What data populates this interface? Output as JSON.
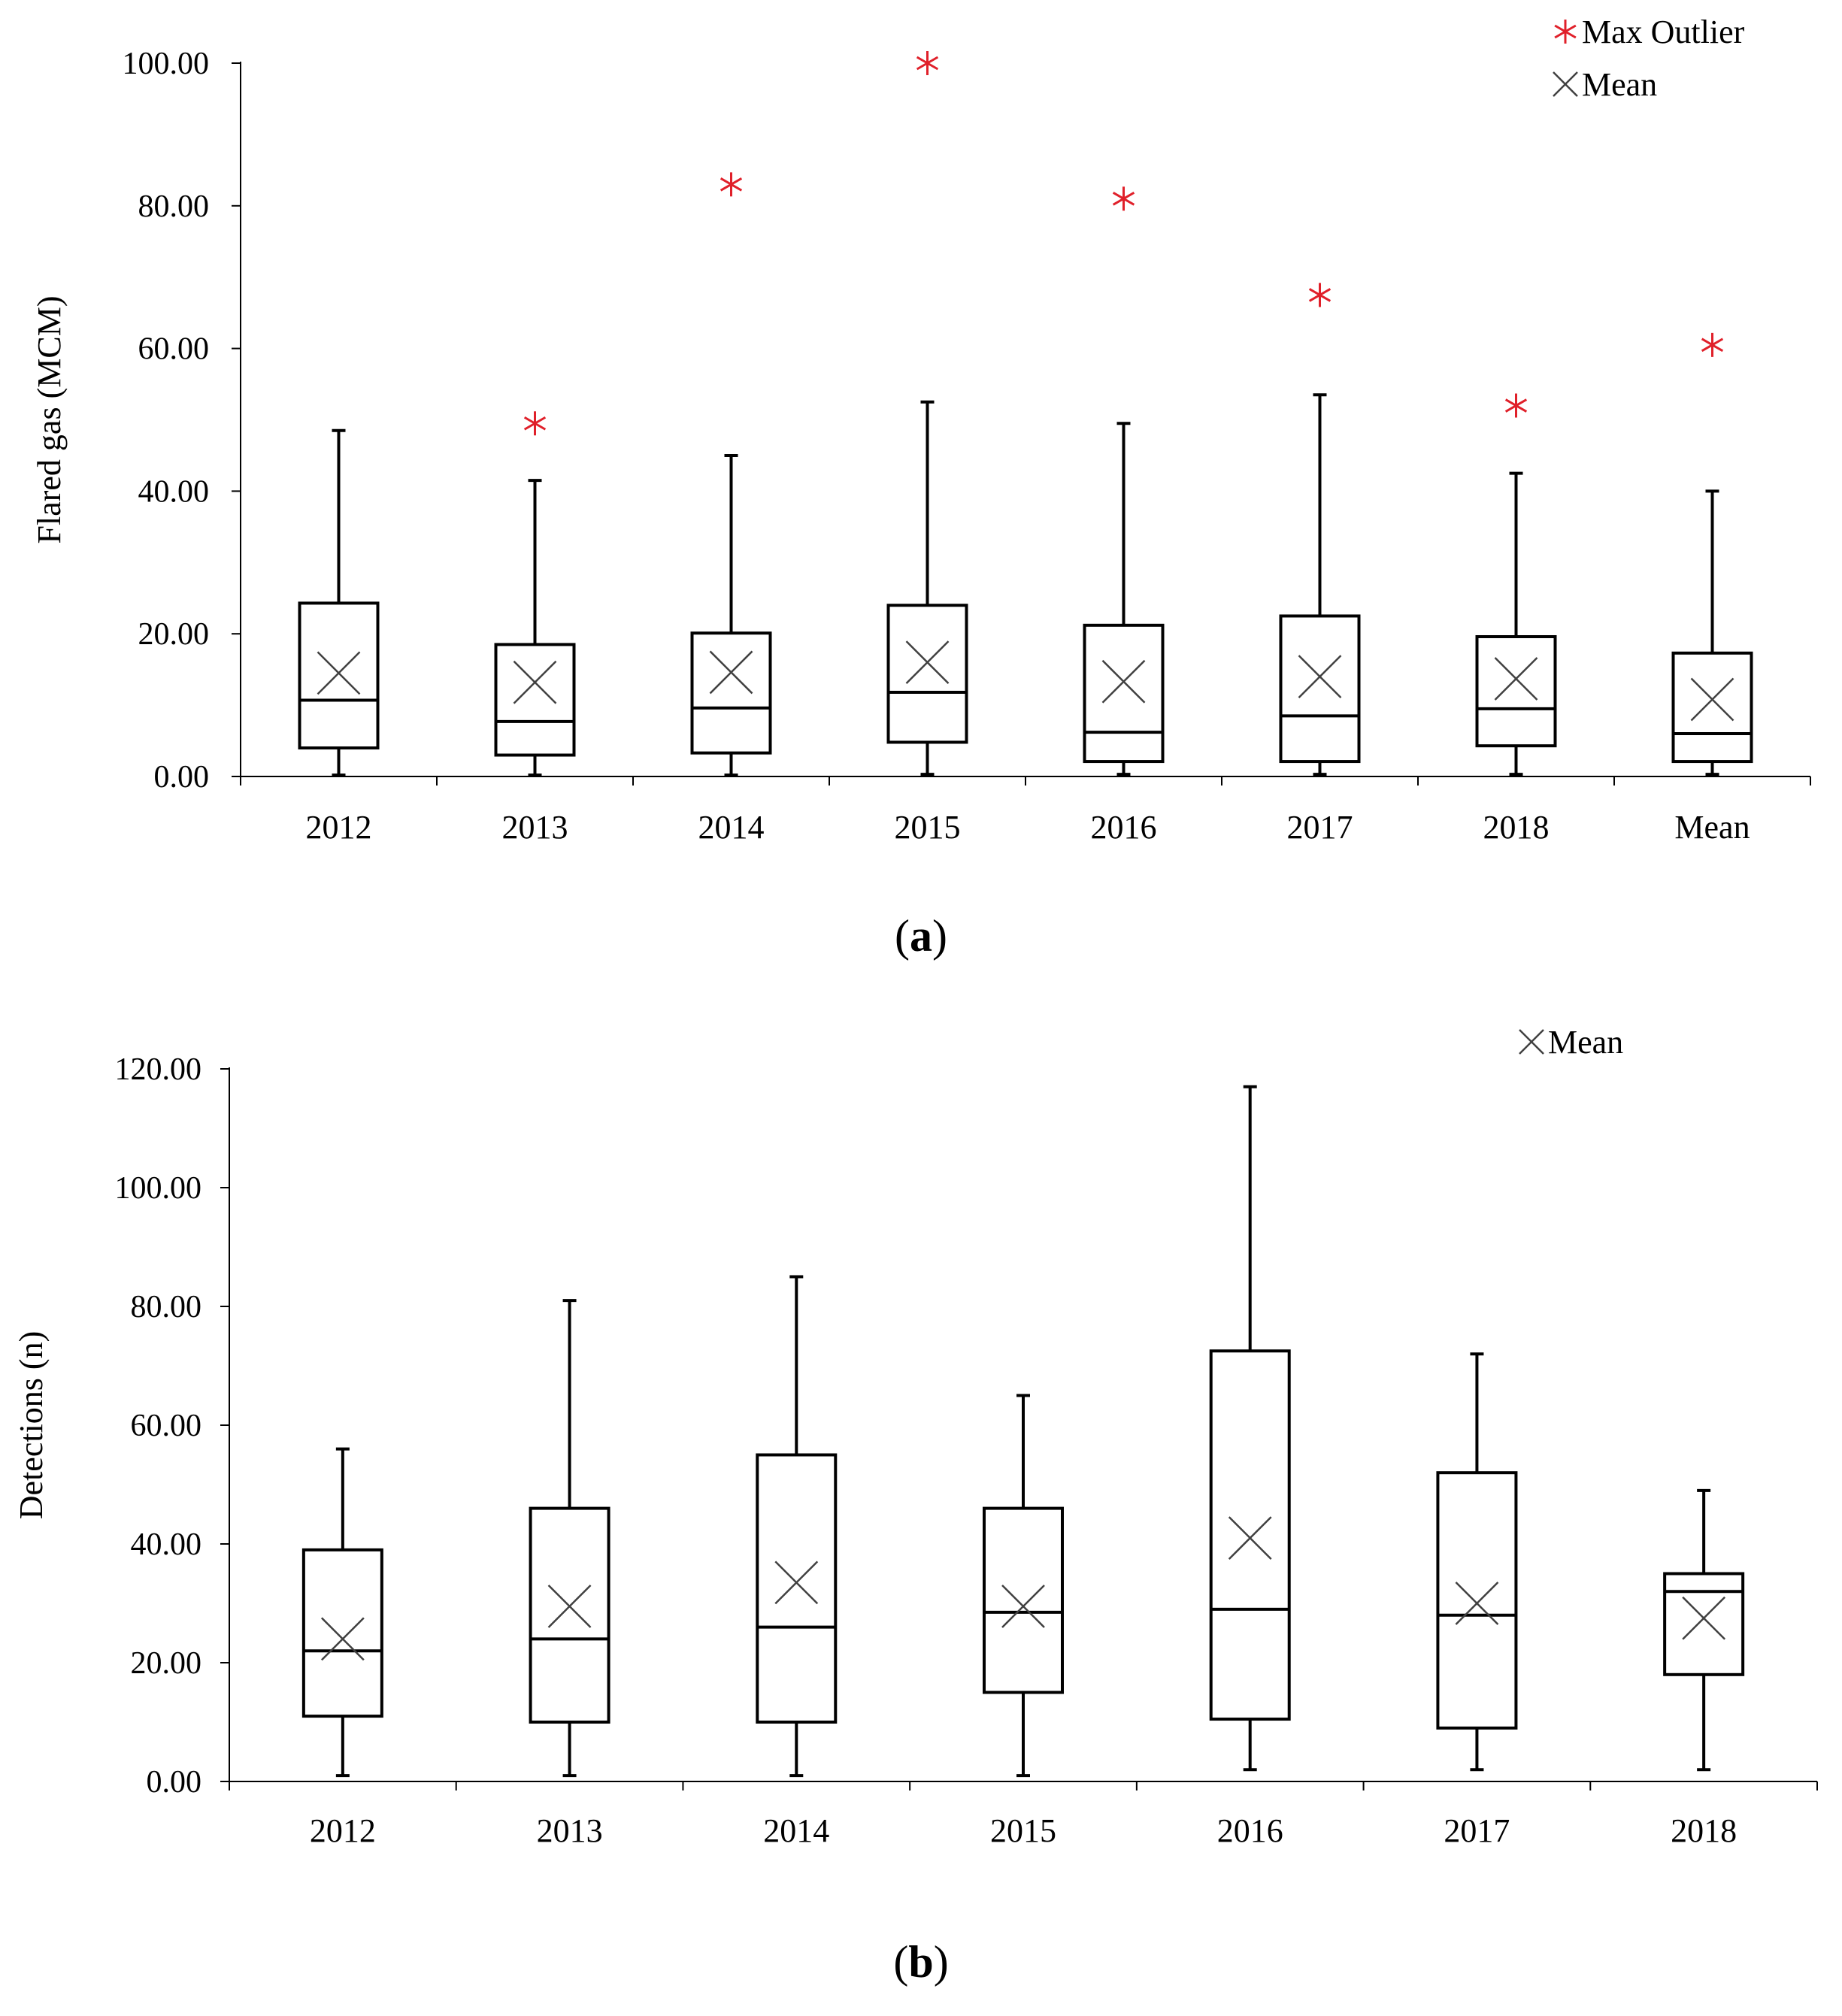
{
  "colors": {
    "axis": "#000000",
    "box": "#000000",
    "mean_marker": "#404040",
    "outlier": "#e0202a",
    "background": "#ffffff"
  },
  "chart_data": [
    {
      "id": "a",
      "type": "boxplot",
      "panel_label_open": "(",
      "panel_label": "a",
      "panel_label_close": ")",
      "title": "",
      "xlabel": "",
      "ylabel": "Flared gas (MCM)",
      "ylim": [
        0,
        100
      ],
      "yticks": [
        0,
        20,
        40,
        60,
        80,
        100
      ],
      "ytick_labels": [
        "0.00",
        "20.00",
        "40.00",
        "60.00",
        "80.00",
        "100.00"
      ],
      "grid": false,
      "legend_position": "top-right",
      "legend": [
        {
          "marker": "outlier-asterisk",
          "label": "Max Outlier"
        },
        {
          "marker": "mean-x",
          "label": "Mean"
        }
      ],
      "categories": [
        "2012",
        "2013",
        "2014",
        "2015",
        "2016",
        "2017",
        "2018",
        "Mean"
      ],
      "boxes": [
        {
          "min": 0.2,
          "q1": 4.0,
          "median": 10.7,
          "q3": 24.3,
          "max": 48.5,
          "mean": 14.5,
          "outlier": null
        },
        {
          "min": 0.2,
          "q1": 3.0,
          "median": 7.7,
          "q3": 18.5,
          "max": 41.5,
          "mean": 13.2,
          "outlier": 49.5
        },
        {
          "min": 0.2,
          "q1": 3.3,
          "median": 9.6,
          "q3": 20.1,
          "max": 45.0,
          "mean": 14.6,
          "outlier": 83.0
        },
        {
          "min": 0.3,
          "q1": 4.8,
          "median": 11.8,
          "q3": 24.0,
          "max": 52.5,
          "mean": 16.0,
          "outlier": 100.0
        },
        {
          "min": 0.3,
          "q1": 2.1,
          "median": 6.2,
          "q3": 21.2,
          "max": 49.5,
          "mean": 13.3,
          "outlier": 81.0
        },
        {
          "min": 0.3,
          "q1": 2.1,
          "median": 8.5,
          "q3": 22.5,
          "max": 53.5,
          "mean": 14.0,
          "outlier": 67.5
        },
        {
          "min": 0.3,
          "q1": 4.3,
          "median": 9.5,
          "q3": 19.6,
          "max": 42.5,
          "mean": 13.7,
          "outlier": 52.0
        },
        {
          "min": 0.3,
          "q1": 2.1,
          "median": 6.0,
          "q3": 17.3,
          "max": 40.0,
          "mean": 10.8,
          "outlier": 60.5
        }
      ]
    },
    {
      "id": "b",
      "type": "boxplot",
      "panel_label_open": "(",
      "panel_label": "b",
      "panel_label_close": ")",
      "title": "",
      "xlabel": "",
      "ylabel": "Detections (n)",
      "ylim": [
        0,
        120
      ],
      "yticks": [
        0,
        20,
        40,
        60,
        80,
        100,
        120
      ],
      "ytick_labels": [
        "0.00",
        "20.00",
        "40.00",
        "60.00",
        "80.00",
        "100.00",
        "120.00"
      ],
      "grid": false,
      "legend_position": "top-right",
      "legend": [
        {
          "marker": "mean-x",
          "label": "Mean"
        }
      ],
      "categories": [
        "2012",
        "2013",
        "2014",
        "2015",
        "2016",
        "2017",
        "2018"
      ],
      "boxes": [
        {
          "min": 1,
          "q1": 11,
          "median": 22,
          "q3": 39,
          "max": 56,
          "mean": 24,
          "outlier": null
        },
        {
          "min": 1,
          "q1": 10,
          "median": 24,
          "q3": 46,
          "max": 81,
          "mean": 29.5,
          "outlier": null
        },
        {
          "min": 1,
          "q1": 10,
          "median": 26,
          "q3": 55,
          "max": 85,
          "mean": 33.5,
          "outlier": null
        },
        {
          "min": 1,
          "q1": 15,
          "median": 28.5,
          "q3": 46,
          "max": 65,
          "mean": 29.5,
          "outlier": null
        },
        {
          "min": 2,
          "q1": 10.5,
          "median": 29,
          "q3": 72.5,
          "max": 117,
          "mean": 41,
          "outlier": null
        },
        {
          "min": 2,
          "q1": 9,
          "median": 28,
          "q3": 52,
          "max": 72,
          "mean": 30,
          "outlier": null
        },
        {
          "min": 2,
          "q1": 18,
          "median": 32,
          "q3": 35,
          "max": 49,
          "mean": 27.5,
          "outlier": null
        }
      ]
    }
  ]
}
